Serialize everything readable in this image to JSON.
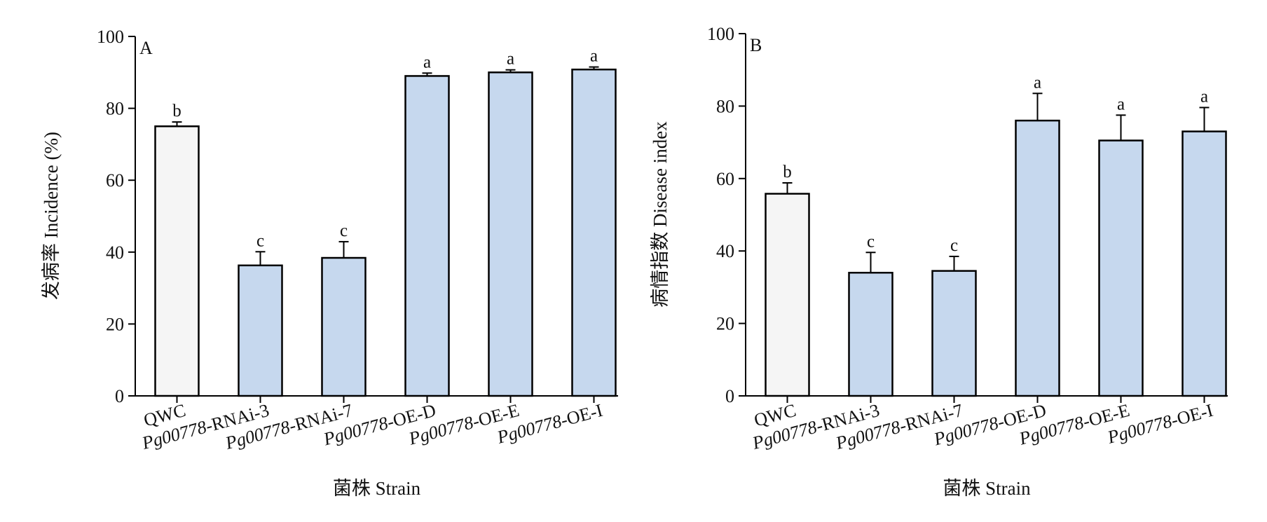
{
  "colors": {
    "control_fill": "#f5f5f5",
    "strain_fill": "#c6d8ee",
    "stroke": "#000000"
  },
  "chart_data": [
    {
      "type": "bar",
      "panel_label": "A",
      "xlabel": "菌株 Strain",
      "ylabel": "发病率 Incidence (%)",
      "ylim": [
        0,
        100
      ],
      "yticks": [
        0,
        20,
        40,
        60,
        80,
        100
      ],
      "grid": false,
      "categories": [
        "QWC",
        "Pg00778-RNAi-3",
        "Pg00778-RNAi-7",
        "Pg00778-OE-D",
        "Pg00778-OE-E",
        "Pg00778-OE-I"
      ],
      "category_italic_prefix": [
        "",
        "Pg00778",
        "Pg00778",
        "Pg00778",
        "Pg00778",
        "Pg00778"
      ],
      "values": [
        75.0,
        36.3,
        38.4,
        89.0,
        90.0,
        90.8
      ],
      "errors": [
        1.2,
        3.8,
        4.5,
        0.8,
        0.7,
        0.7
      ],
      "significance": [
        "b",
        "c",
        "c",
        "a",
        "a",
        "a"
      ]
    },
    {
      "type": "bar",
      "panel_label": "B",
      "xlabel": "菌株 Strain",
      "ylabel": "病情指数 Disease index",
      "ylim": [
        0,
        100
      ],
      "yticks": [
        0,
        20,
        40,
        60,
        80,
        100
      ],
      "grid": false,
      "categories": [
        "QWC",
        "Pg00778-RNAi-3",
        "Pg00778-RNAi-7",
        "Pg00778-OE-D",
        "Pg00778-OE-E",
        "Pg00778-OE-I"
      ],
      "category_italic_prefix": [
        "",
        "Pg00778",
        "Pg00778",
        "Pg00778",
        "Pg00778",
        "Pg00778"
      ],
      "values": [
        55.8,
        34.0,
        34.5,
        76.0,
        70.5,
        73.0
      ],
      "errors": [
        3.0,
        5.6,
        4.0,
        7.5,
        7.0,
        6.6
      ],
      "significance": [
        "b",
        "c",
        "c",
        "a",
        "a",
        "a"
      ]
    }
  ]
}
